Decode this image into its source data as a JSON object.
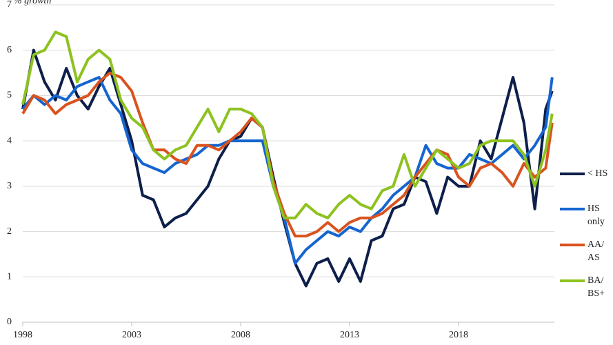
{
  "chart_data": {
    "type": "line",
    "y_label": "% growth",
    "x": [
      1998,
      1998.5,
      1999,
      1999.5,
      2000,
      2000.5,
      2001,
      2001.5,
      2002,
      2002.5,
      2003,
      2003.5,
      2004,
      2004.5,
      2005,
      2005.5,
      2006,
      2006.5,
      2007,
      2007.5,
      2008,
      2008.5,
      2009,
      2009.5,
      2010,
      2010.5,
      2011,
      2011.5,
      2012,
      2012.5,
      2013,
      2013.5,
      2014,
      2014.5,
      2015,
      2015.5,
      2016,
      2016.5,
      2017,
      2017.5,
      2018,
      2018.5,
      2019,
      2019.5,
      2020,
      2020.5,
      2021,
      2021.5,
      2022,
      2022.3
    ],
    "series": [
      {
        "name": "< HS",
        "color": "#0d1f4a",
        "values": [
          4.7,
          6.0,
          5.3,
          4.9,
          5.6,
          5.0,
          4.7,
          5.2,
          5.6,
          4.8,
          4.0,
          2.8,
          2.7,
          2.1,
          2.3,
          2.4,
          2.7,
          3.0,
          3.6,
          4.0,
          4.1,
          4.5,
          4.3,
          3.2,
          2.2,
          1.3,
          0.8,
          1.3,
          1.4,
          0.9,
          1.4,
          0.9,
          1.8,
          1.9,
          2.5,
          2.6,
          3.2,
          3.1,
          2.4,
          3.2,
          3.0,
          3.0,
          4.0,
          3.6,
          4.5,
          5.4,
          4.4,
          2.5,
          4.7,
          5.1
        ]
      },
      {
        "name": "HS only",
        "color": "#1565d0",
        "values": [
          4.7,
          5.0,
          4.8,
          5.0,
          4.9,
          5.2,
          5.3,
          5.4,
          4.9,
          4.6,
          3.8,
          3.5,
          3.4,
          3.3,
          3.5,
          3.6,
          3.7,
          3.9,
          3.9,
          4.0,
          4.0,
          4.0,
          4.0,
          3.0,
          2.3,
          1.3,
          1.6,
          1.8,
          2.0,
          1.9,
          2.1,
          2.0,
          2.3,
          2.5,
          2.8,
          3.0,
          3.2,
          3.9,
          3.5,
          3.4,
          3.4,
          3.7,
          3.6,
          3.5,
          3.7,
          3.9,
          3.6,
          3.9,
          4.3,
          5.4
        ]
      },
      {
        "name": "AA/ AS",
        "color": "#d9531e",
        "values": [
          4.6,
          5.0,
          4.9,
          4.6,
          4.8,
          4.9,
          5.0,
          5.3,
          5.5,
          5.4,
          5.1,
          4.4,
          3.8,
          3.8,
          3.6,
          3.5,
          3.9,
          3.9,
          3.8,
          4.0,
          4.2,
          4.5,
          4.3,
          3.1,
          2.4,
          1.9,
          1.9,
          2.0,
          2.2,
          2.0,
          2.2,
          2.3,
          2.3,
          2.4,
          2.6,
          2.8,
          3.2,
          3.5,
          3.8,
          3.7,
          3.2,
          3.0,
          3.4,
          3.5,
          3.3,
          3.0,
          3.5,
          3.2,
          3.4,
          4.4
        ]
      },
      {
        "name": "BA/ BS+",
        "color": "#8dc21f",
        "values": [
          4.8,
          5.9,
          6.0,
          6.4,
          6.3,
          5.3,
          5.8,
          6.0,
          5.8,
          4.9,
          4.5,
          4.3,
          3.8,
          3.6,
          3.8,
          3.9,
          4.3,
          4.7,
          4.2,
          4.7,
          4.7,
          4.6,
          4.3,
          3.0,
          2.3,
          2.3,
          2.6,
          2.4,
          2.3,
          2.6,
          2.8,
          2.6,
          2.5,
          2.9,
          3.0,
          3.7,
          3.0,
          3.4,
          3.8,
          3.6,
          3.4,
          3.5,
          3.9,
          4.0,
          4.0,
          4.0,
          3.7,
          3.0,
          3.8,
          4.6
        ]
      }
    ],
    "xlim": [
      1998,
      2022.4
    ],
    "xticks": [
      1998,
      2003,
      2008,
      2013,
      2018
    ],
    "ylim": [
      0,
      7
    ],
    "yticks": [
      0,
      1,
      2,
      3,
      4,
      5,
      6,
      7
    ],
    "grid": true,
    "legend": "right"
  }
}
